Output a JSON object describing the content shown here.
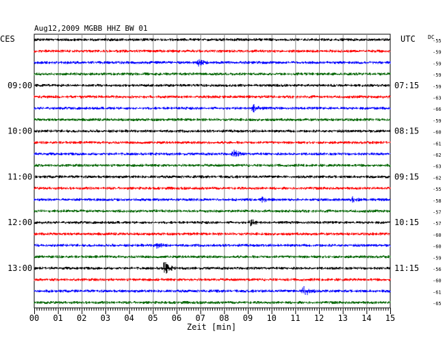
{
  "chart_data": {
    "type": "line",
    "title": "Aug12,2009  MGBB HHZ BW 01",
    "left_timezone": "CES",
    "right_timezone": "UTC",
    "dc_label": "DC",
    "xlabel": "Zeit [min]",
    "xlim": [
      0,
      15
    ],
    "x_ticks": [
      "00",
      "01",
      "02",
      "03",
      "04",
      "05",
      "06",
      "07",
      "08",
      "09",
      "10",
      "11",
      "12",
      "13",
      "14",
      "15"
    ],
    "grid": true,
    "trace_colors": [
      "#000000",
      "#ff0000",
      "#0000ff",
      "#006400"
    ],
    "left_time_labels": [
      {
        "trace": 4,
        "text": "09:00"
      },
      {
        "trace": 8,
        "text": "10:00"
      },
      {
        "trace": 12,
        "text": "11:00"
      },
      {
        "trace": 16,
        "text": "12:00"
      },
      {
        "trace": 20,
        "text": "13:00"
      }
    ],
    "right_time_labels": [
      {
        "trace": 0,
        "text": ""
      },
      {
        "trace": 4,
        "text": "07:15"
      },
      {
        "trace": 8,
        "text": "08:15"
      },
      {
        "trace": 12,
        "text": "09:15"
      },
      {
        "trace": 16,
        "text": "10:15"
      },
      {
        "trace": 20,
        "text": "11:15"
      }
    ],
    "dc_offsets": [
      "-55",
      "-59",
      "-59",
      "-59",
      "-59",
      "-63",
      "-66",
      "-59",
      "-60",
      "-61",
      "-62",
      "-63",
      "-62",
      "-55",
      "-58",
      "-57",
      "-57",
      "-60",
      "-60",
      "-59",
      "-56",
      "-60",
      "-61",
      "-65"
    ],
    "events": [
      {
        "trace": 2,
        "minute": 6.9,
        "amplitude": 5
      },
      {
        "trace": 6,
        "minute": 9.2,
        "amplitude": 8
      },
      {
        "trace": 10,
        "minute": 8.4,
        "amplitude": 6
      },
      {
        "trace": 14,
        "minute": 9.6,
        "amplitude": 4
      },
      {
        "trace": 14,
        "minute": 13.4,
        "amplitude": 4
      },
      {
        "trace": 16,
        "minute": 9.1,
        "amplitude": 5
      },
      {
        "trace": 18,
        "minute": 5.1,
        "amplitude": 5
      },
      {
        "trace": 20,
        "minute": 5.45,
        "amplitude": 12
      },
      {
        "trace": 22,
        "minute": 11.35,
        "amplitude": 11
      }
    ]
  }
}
